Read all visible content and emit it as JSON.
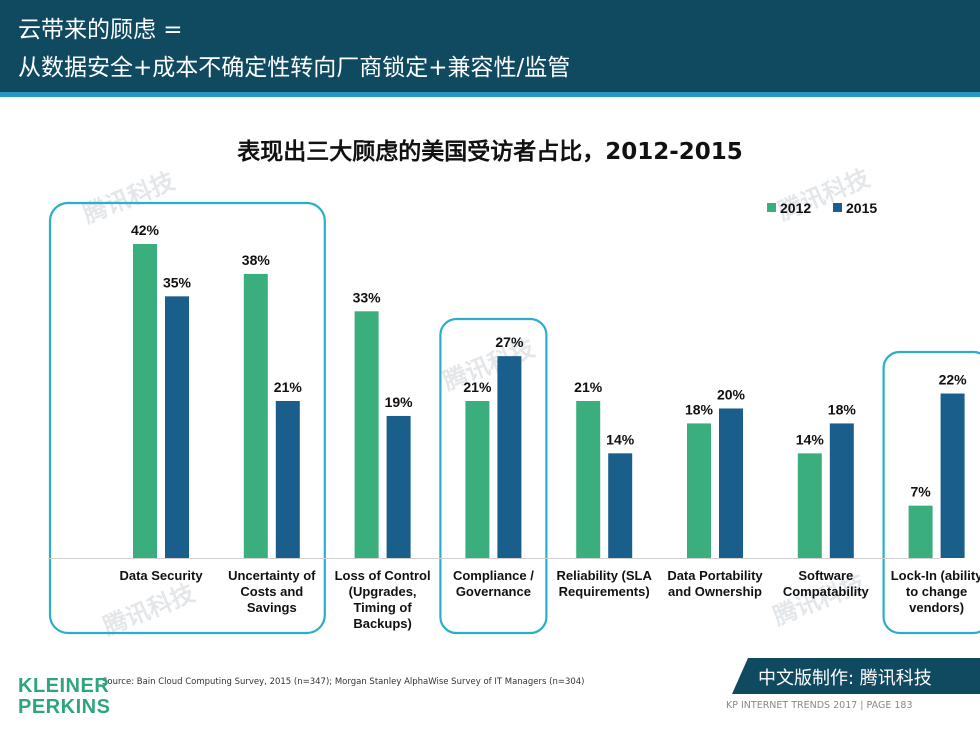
{
  "header": {
    "line1": "云带来的顾虑 =",
    "line2": "从数据安全+成本不确定性转向厂商锁定+兼容性/监管"
  },
  "chart_data": {
    "type": "bar",
    "title": "表现出三大顾虑的美国受访者占比，2012-2015",
    "categories": [
      "Data Security",
      "Uncertainty of Costs and Savings",
      "Loss of Control (Upgrades, Timing of Backups)",
      "Compliance / Governance",
      "Reliability (SLA Requirements)",
      "Data Portability and Ownership",
      "Software Compatability",
      "Lock-In (ability to change vendors)"
    ],
    "category_lines": [
      [
        "Data Security"
      ],
      [
        "Uncertainty of",
        "Costs and",
        "Savings"
      ],
      [
        "Loss of Control",
        "(Upgrades,",
        "Timing of",
        "Backups)"
      ],
      [
        "Compliance /",
        "Governance"
      ],
      [
        "Reliability (SLA",
        "Requirements)"
      ],
      [
        "Data Portability",
        "and Ownership"
      ],
      [
        "Software",
        "Compatability"
      ],
      [
        "Lock-In (ability",
        "to change",
        "vendors)"
      ]
    ],
    "series": [
      {
        "name": "2012",
        "color": "#3aaf7d",
        "values": [
          42,
          38,
          33,
          21,
          21,
          18,
          14,
          7
        ]
      },
      {
        "name": "2015",
        "color": "#1a5f8c",
        "values": [
          35,
          21,
          19,
          27,
          14,
          20,
          18,
          22
        ]
      }
    ],
    "value_suffix": "%",
    "ylim": [
      0,
      42
    ],
    "highlighted_categories": [
      0,
      1,
      3,
      7
    ],
    "highlight_color": "#2aaec9",
    "legend_position": "top-right"
  },
  "source": "Source: Bain Cloud Computing Survey, 2015 (n=347); Morgan Stanley AlphaWise Survey of IT Managers (n=304)",
  "logo": {
    "line1": "KLEINER",
    "line2": "PERKINS"
  },
  "badge": "中文版制作: 腾讯科技",
  "footer": "KP INTERNET TRENDS 2017  |  PAGE 183",
  "watermark": "腾讯科技"
}
